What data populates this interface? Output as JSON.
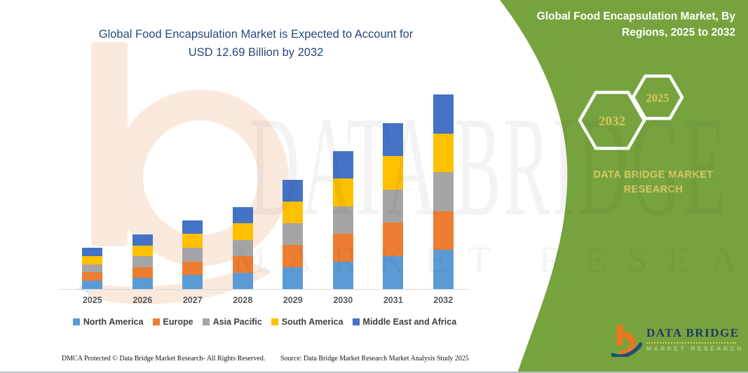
{
  "header": {
    "title_line1": "Global Food Encapsulation Market is Expected to Account for",
    "title_line2": "USD 12.69 Billion by 2032"
  },
  "side_panel": {
    "heading_line1": "Global Food Encapsulation Market, By",
    "heading_line2": "Regions, 2025 to 2032",
    "hexagon_back_year": "2032",
    "hexagon_front_year": "2025",
    "brand_line1": "DATA BRIDGE MARKET",
    "brand_line2": "RESEARCH",
    "logo_name": "DATA BRIDGE",
    "logo_subtext": "MARKET RESEARCH"
  },
  "watermark": {
    "line1": "DATA BRIDGE",
    "line2": "MARKET RESEARCH"
  },
  "footer": {
    "dmca": "DMCA Protected © Data Bridge Market Research-  All Rights Reserved.",
    "source": "Source: Data Bridge Market Research  Market Analysis Study 2025"
  },
  "colors": {
    "panel_green": "#77A33E",
    "title_blue": "#27497B",
    "accent_yellow": "#D9C75A"
  },
  "chart_data": {
    "type": "bar",
    "stacked": true,
    "unit": "USD Billion",
    "title": "Global Food Encapsulation Market is Expected to Account for USD 12.69 Billion by 2032",
    "categories": [
      "2025",
      "2026",
      "2027",
      "2028",
      "2029",
      "2030",
      "2031",
      "2032"
    ],
    "series": [
      {
        "name": "North America",
        "color": "#5B9BD5",
        "values": [
          0.54,
          0.71,
          0.9,
          1.07,
          1.43,
          1.8,
          2.16,
          2.538
        ]
      },
      {
        "name": "Europe",
        "color": "#ED7D31",
        "values": [
          0.54,
          0.71,
          0.9,
          1.07,
          1.43,
          1.8,
          2.16,
          2.538
        ]
      },
      {
        "name": "Asia Pacific",
        "color": "#A5A5A5",
        "values": [
          0.54,
          0.71,
          0.9,
          1.07,
          1.43,
          1.8,
          2.16,
          2.538
        ]
      },
      {
        "name": "South America",
        "color": "#FFC000",
        "values": [
          0.54,
          0.71,
          0.9,
          1.07,
          1.43,
          1.8,
          2.16,
          2.538
        ]
      },
      {
        "name": "Middle East and Africa",
        "color": "#4472C4",
        "values": [
          0.54,
          0.71,
          0.9,
          1.07,
          1.43,
          1.8,
          2.16,
          2.538
        ]
      }
    ],
    "totals": [
      2.7,
      3.55,
      4.5,
      5.35,
      7.15,
      9.0,
      10.8,
      12.69
    ],
    "xlabel": "",
    "ylabel": "",
    "ylim": [
      0,
      13
    ],
    "value_axis_visible": false,
    "gridlines": false,
    "legend_position": "bottom"
  }
}
